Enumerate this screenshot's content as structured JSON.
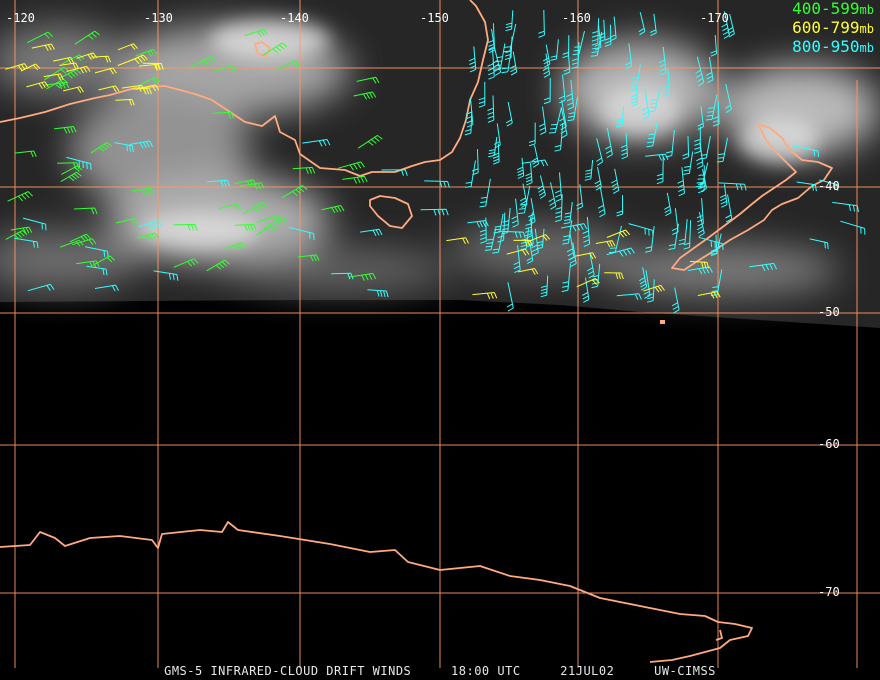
{
  "longitude_labels": [
    "-120",
    "-130",
    "-140",
    "-150",
    "-160",
    "-170"
  ],
  "latitude_labels": [
    "-40",
    "-50",
    "-60",
    "-70"
  ],
  "legend": [
    {
      "range": "400-599",
      "unit": "mb",
      "color": "#33ff33"
    },
    {
      "range": "600-799",
      "unit": "mb",
      "color": "#ffff33"
    },
    {
      "range": "800-950",
      "unit": "mb",
      "color": "#33ffff"
    }
  ],
  "footer": {
    "product": "GMS-5 INFRARED-CLOUD DRIFT WINDS",
    "time": "18:00 UTC",
    "date": "21JUL02",
    "source": "UW-CIMSS"
  },
  "colors": {
    "grid": "#ff9966",
    "coastline": "#ffaa80",
    "background": "#000000"
  }
}
